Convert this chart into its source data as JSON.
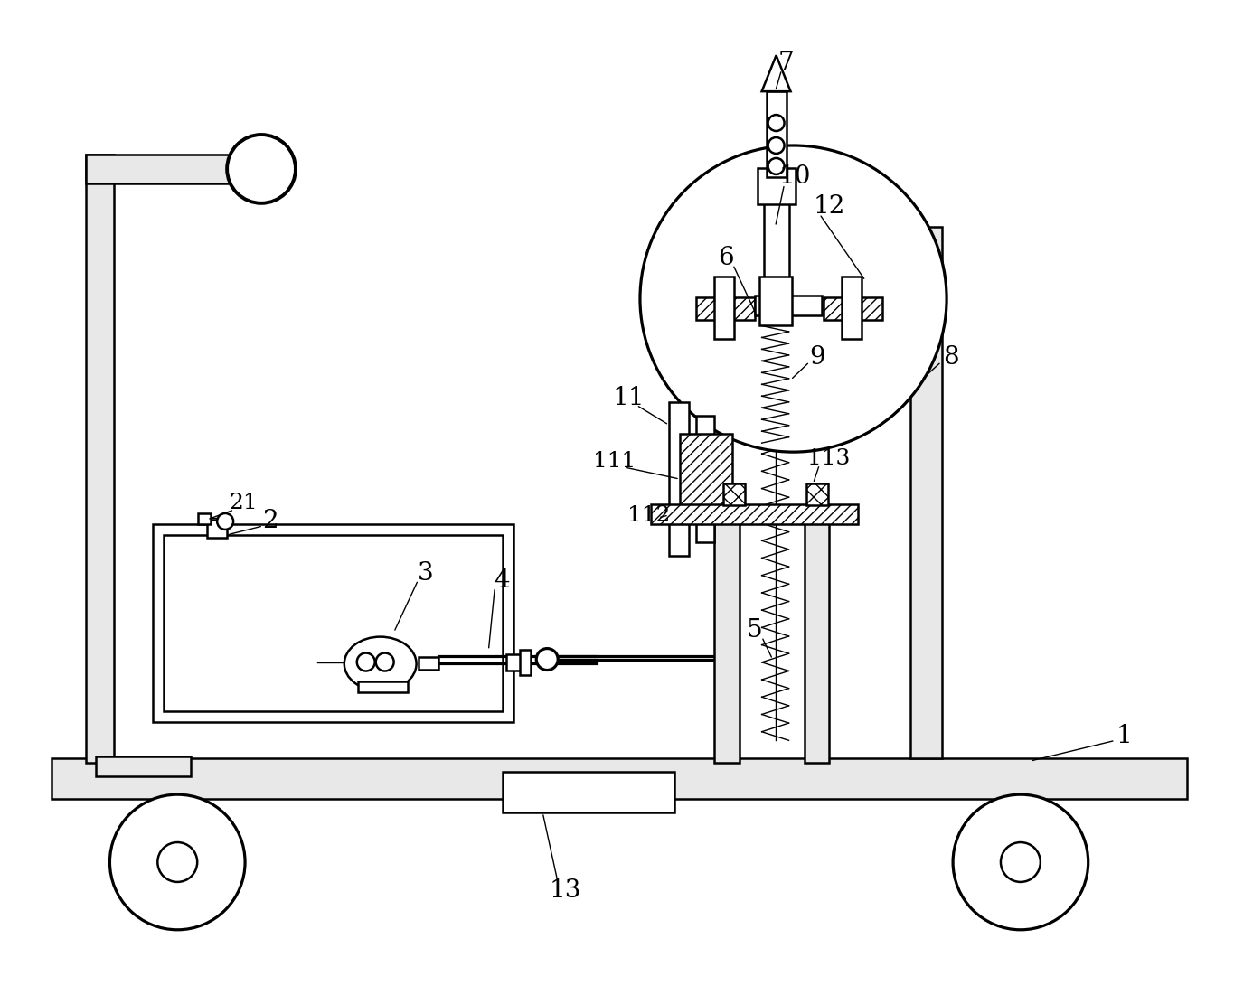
{
  "bg_color": "#ffffff",
  "line_color": "#000000",
  "lw": 1.8,
  "lw_thin": 1.0,
  "fig_width": 13.86,
  "fig_height": 11.01
}
